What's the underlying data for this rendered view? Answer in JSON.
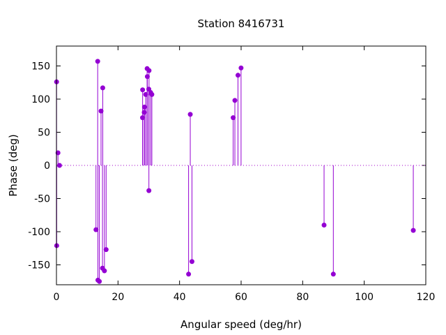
{
  "chart_data": {
    "type": "scatter",
    "style": "impulses-with-points",
    "title": "Station 8416731",
    "xlabel": "Angular speed (deg/hr)",
    "ylabel": "Phase (deg)",
    "xlim": [
      0,
      120
    ],
    "ylim": [
      -180,
      180
    ],
    "x_ticks": [
      0,
      20,
      40,
      60,
      80,
      100,
      120
    ],
    "y_ticks": [
      -150,
      -100,
      -50,
      0,
      50,
      100,
      150
    ],
    "x_tick_labels": [
      "0",
      "20",
      "40",
      "60",
      "80",
      "100",
      "120"
    ],
    "y_tick_labels": [
      "-150",
      "-100",
      "-50",
      "0",
      "50",
      "100",
      "150"
    ],
    "grid": false,
    "legend": "none",
    "zero_reference_line": true,
    "color": "#9400d3",
    "points": [
      {
        "x": 0.04,
        "y": 126
      },
      {
        "x": 0.08,
        "y": -121
      },
      {
        "x": 0.5,
        "y": 19
      },
      {
        "x": 1.0,
        "y": 0
      },
      {
        "x": 12.85,
        "y": -97
      },
      {
        "x": 13.4,
        "y": 157
      },
      {
        "x": 13.47,
        "y": -173
      },
      {
        "x": 13.94,
        "y": -175
      },
      {
        "x": 14.49,
        "y": 82
      },
      {
        "x": 14.96,
        "y": -155
      },
      {
        "x": 15.04,
        "y": 117
      },
      {
        "x": 15.59,
        "y": -159
      },
      {
        "x": 16.14,
        "y": -127
      },
      {
        "x": 27.97,
        "y": 72
      },
      {
        "x": 28.0,
        "y": 114
      },
      {
        "x": 28.51,
        "y": 80
      },
      {
        "x": 28.6,
        "y": 88
      },
      {
        "x": 29.0,
        "y": 107
      },
      {
        "x": 29.46,
        "y": 146
      },
      {
        "x": 29.53,
        "y": 134
      },
      {
        "x": 30.0,
        "y": 115
      },
      {
        "x": 30.04,
        "y": -38
      },
      {
        "x": 30.08,
        "y": 143
      },
      {
        "x": 30.6,
        "y": 110
      },
      {
        "x": 31.0,
        "y": 107
      },
      {
        "x": 42.93,
        "y": -164
      },
      {
        "x": 43.48,
        "y": 77
      },
      {
        "x": 44.03,
        "y": -145
      },
      {
        "x": 57.42,
        "y": 72
      },
      {
        "x": 57.97,
        "y": 98
      },
      {
        "x": 58.98,
        "y": 136
      },
      {
        "x": 59.98,
        "y": 147
      },
      {
        "x": 86.95,
        "y": -90
      },
      {
        "x": 89.96,
        "y": -164
      },
      {
        "x": 115.94,
        "y": -98
      }
    ]
  }
}
